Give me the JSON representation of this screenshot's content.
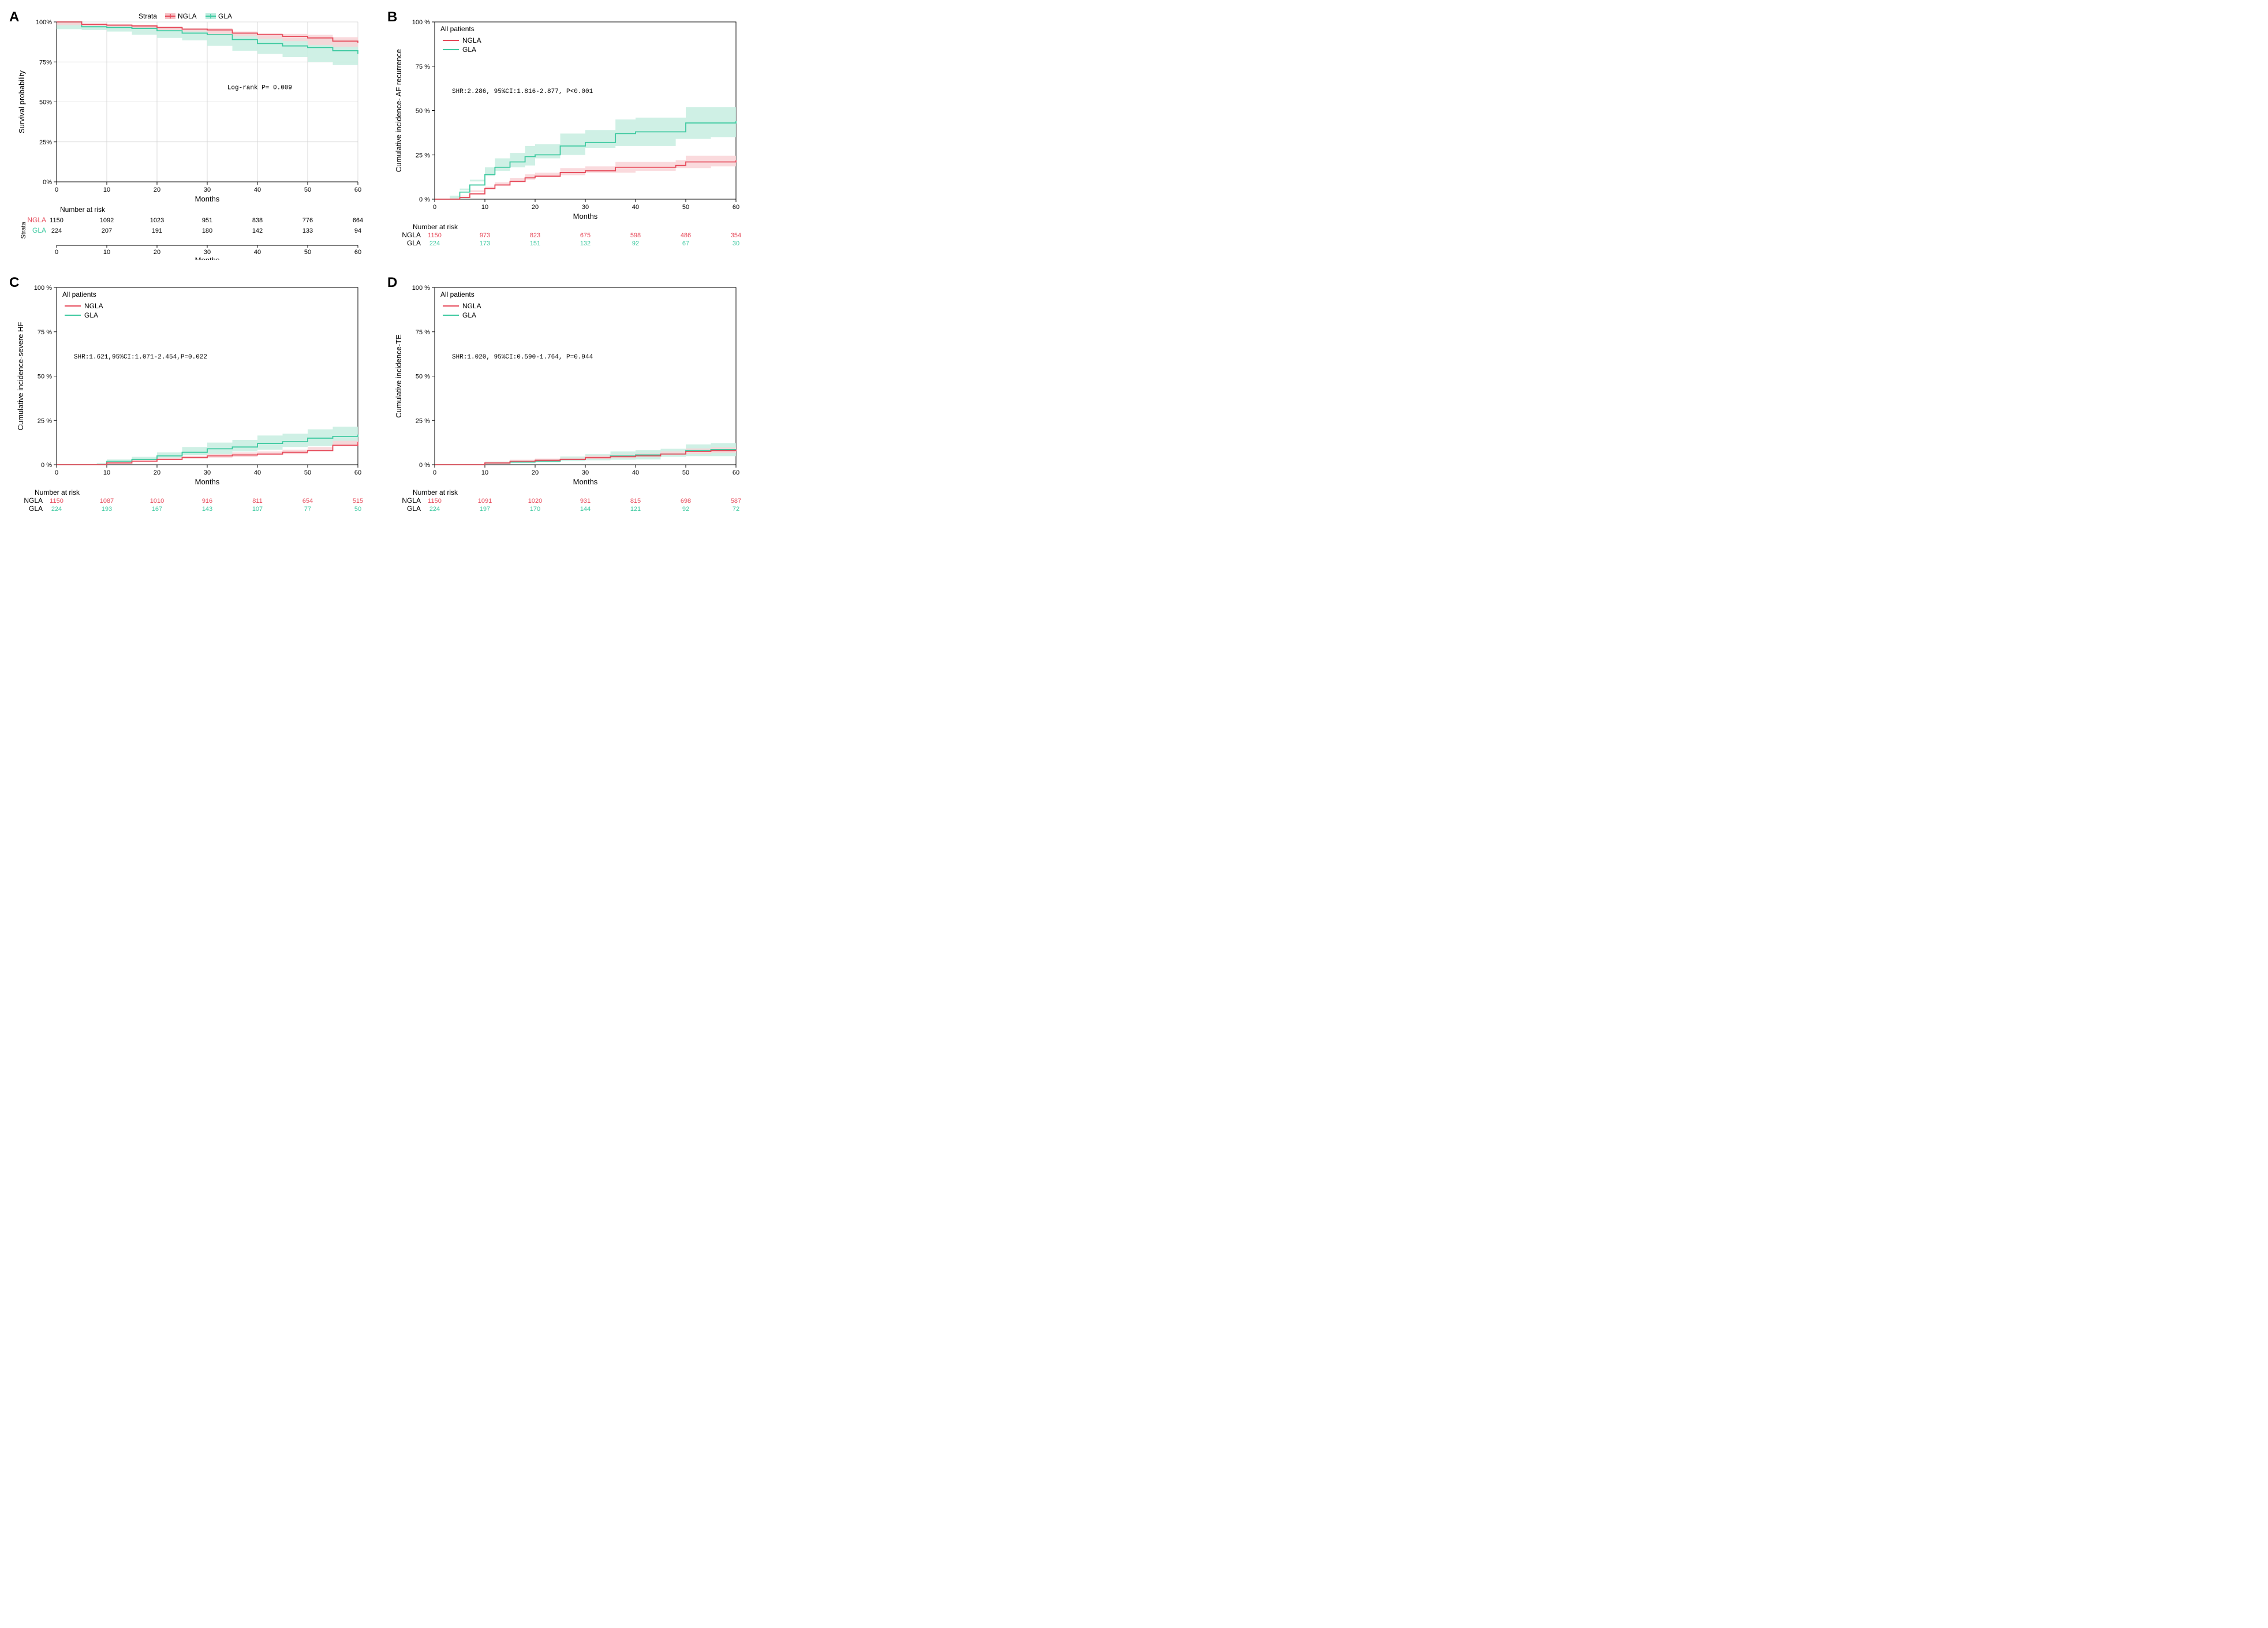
{
  "colors": {
    "ngla": "#e64a5a",
    "gla": "#3dc9a0",
    "ngla_band": "#f9d3d7",
    "gla_band": "#c7ede1",
    "axis": "#000000",
    "grid": "#d0d0d0",
    "bg": "#ffffff",
    "panel_border": "#000000"
  },
  "fontsizes": {
    "panel_letter": 24,
    "axis_title": 13,
    "tick": 11,
    "legend": 12,
    "stat": 11,
    "risk": 11
  },
  "panels": {
    "A": {
      "letter": "A",
      "type": "survival",
      "ylabel": "Survival probability",
      "xlabel": "Months",
      "xlim": [
        0,
        60
      ],
      "xticks": [
        0,
        10,
        20,
        30,
        40,
        50,
        60
      ],
      "ylim": [
        0,
        100
      ],
      "yticks": [
        0,
        25,
        50,
        75,
        100
      ],
      "ytick_labels": [
        "0%",
        "25%",
        "50%",
        "75%",
        "100%"
      ],
      "strata_label": "Strata",
      "legend": [
        {
          "key": "NGLA",
          "color": "#e64a5a"
        },
        {
          "key": "GLA",
          "color": "#3dc9a0"
        }
      ],
      "stat_text": "Log-rank   P= 0.009",
      "series": {
        "NGLA": {
          "x": [
            0,
            5,
            10,
            15,
            20,
            25,
            30,
            35,
            40,
            45,
            50,
            55,
            60
          ],
          "y": [
            100,
            98.5,
            98,
            97.5,
            96.5,
            95.5,
            95,
            93,
            92,
            91,
            90,
            88,
            87
          ],
          "lo": [
            100,
            98,
            97.5,
            97,
            96,
            95,
            94,
            92,
            91,
            89.5,
            88,
            85.5,
            84.5
          ],
          "hi": [
            100,
            99,
            98.5,
            98,
            97,
            96,
            96,
            94,
            93,
            92.5,
            92,
            90.5,
            89.5
          ]
        },
        "GLA": {
          "x": [
            0,
            5,
            10,
            15,
            20,
            25,
            30,
            35,
            40,
            45,
            50,
            55,
            60
          ],
          "y": [
            100,
            97,
            96.5,
            96,
            94.5,
            93,
            92,
            89,
            86.5,
            85,
            84,
            82,
            80
          ],
          "lo": [
            100,
            95.5,
            95,
            94,
            92,
            90,
            88.5,
            85,
            82,
            80,
            78,
            75,
            73
          ],
          "hi": [
            100,
            98.5,
            98,
            98,
            97,
            96,
            95.5,
            93,
            91,
            90,
            90,
            89,
            87
          ]
        }
      },
      "risk": {
        "title": "Number at risk",
        "xticks": [
          0,
          10,
          20,
          30,
          40,
          50,
          60
        ],
        "rows": [
          {
            "label": "NGLA",
            "color": "#e64a5a",
            "vals": [
              1150,
              1092,
              1023,
              951,
              838,
              776,
              664
            ]
          },
          {
            "label": "GLA",
            "color": "#3dc9a0",
            "vals": [
              224,
              207,
              191,
              180,
              142,
              133,
              94
            ]
          }
        ],
        "ylab": "Strata",
        "val_color": "#000000"
      }
    },
    "B": {
      "letter": "B",
      "type": "cuminc",
      "panel_title": "All patients",
      "ylabel": "Cumulative incidence- AF recurrence",
      "xlabel": "Months",
      "xlim": [
        0,
        60
      ],
      "xticks": [
        0,
        10,
        20,
        30,
        40,
        50,
        60
      ],
      "ylim": [
        0,
        100
      ],
      "yticks": [
        0,
        25,
        50,
        75,
        100
      ],
      "ytick_labels": [
        "0 %",
        "25 %",
        "50 %",
        "75 %",
        "100 %"
      ],
      "legend": [
        {
          "key": "NGLA",
          "color": "#e64a5a"
        },
        {
          "key": "GLA",
          "color": "#3dc9a0"
        }
      ],
      "stat_text": "SHR:2.286, 95%CI:1.816-2.877, P<0.001",
      "series": {
        "NGLA": {
          "x": [
            0,
            3,
            5,
            7,
            10,
            12,
            15,
            18,
            20,
            25,
            30,
            36,
            40,
            48,
            50,
            55,
            60
          ],
          "y": [
            0,
            0,
            1,
            3,
            6,
            8,
            10,
            12,
            13,
            15,
            16,
            18,
            18,
            19,
            21,
            21,
            22
          ],
          "lo": [
            0,
            0,
            0.5,
            2,
            5,
            6.5,
            8,
            10,
            11,
            12.5,
            13.5,
            15,
            15,
            16,
            17.5,
            17.5,
            18.5
          ],
          "hi": [
            0,
            0,
            1.5,
            4,
            7,
            9.5,
            12,
            14,
            15,
            17.5,
            18.5,
            21,
            21,
            22,
            24.5,
            24.5,
            25.5
          ]
        },
        "GLA": {
          "x": [
            0,
            3,
            5,
            7,
            10,
            12,
            15,
            18,
            20,
            25,
            30,
            36,
            40,
            48,
            50,
            55,
            60
          ],
          "y": [
            0,
            0,
            4,
            8,
            14,
            18,
            21,
            24,
            25,
            30,
            32,
            37,
            38,
            38,
            43,
            43,
            44
          ],
          "lo": [
            0,
            0,
            2,
            5,
            10,
            13,
            16,
            18,
            19,
            23,
            25,
            29,
            30,
            30,
            34,
            34,
            35
          ],
          "hi": [
            0,
            0,
            6,
            11,
            18,
            23,
            26,
            30,
            31,
            37,
            39,
            45,
            46,
            46,
            52,
            52,
            53
          ]
        }
      },
      "risk": {
        "title": "Number at risk",
        "xticks": [
          0,
          10,
          20,
          30,
          40,
          50,
          60
        ],
        "rows": [
          {
            "label": "NGLA",
            "color": "#e64a5a",
            "vals": [
              1150,
              973,
              823,
              675,
              598,
              486,
              354
            ]
          },
          {
            "label": "GLA",
            "color": "#3dc9a0",
            "vals": [
              224,
              173,
              151,
              132,
              92,
              67,
              30
            ]
          }
        ],
        "colored_vals": true
      }
    },
    "C": {
      "letter": "C",
      "type": "cuminc",
      "panel_title": "All patients",
      "ylabel": "Cumulative incidence-severe HF",
      "xlabel": "Months",
      "xlim": [
        0,
        60
      ],
      "xticks": [
        0,
        10,
        20,
        30,
        40,
        50,
        60
      ],
      "ylim": [
        0,
        100
      ],
      "yticks": [
        0,
        25,
        50,
        75,
        100
      ],
      "ytick_labels": [
        "0 %",
        "25 %",
        "50 %",
        "75 %",
        "100 %"
      ],
      "legend": [
        {
          "key": "NGLA",
          "color": "#e64a5a"
        },
        {
          "key": "GLA",
          "color": "#3dc9a0"
        }
      ],
      "stat_text": "SHR:1.621,95%CI:1.071-2.454,P=0.022",
      "series": {
        "NGLA": {
          "x": [
            0,
            8,
            10,
            15,
            20,
            25,
            30,
            35,
            40,
            45,
            50,
            55,
            60
          ],
          "y": [
            0,
            0,
            1,
            2,
            3,
            4,
            5,
            5.5,
            6,
            7,
            8,
            11,
            13
          ],
          "lo": [
            0,
            0,
            0.5,
            1,
            2,
            3,
            4,
            4,
            4.5,
            5.5,
            6,
            8.5,
            10.5
          ],
          "hi": [
            0,
            0,
            1.5,
            3,
            4,
            5,
            6,
            7,
            7.5,
            8.5,
            10,
            13.5,
            15.5
          ]
        },
        "GLA": {
          "x": [
            0,
            8,
            10,
            15,
            20,
            25,
            30,
            35,
            40,
            45,
            50,
            55,
            60
          ],
          "y": [
            0,
            0,
            2,
            3,
            5,
            7,
            9,
            10,
            12,
            13,
            15,
            16,
            17
          ],
          "lo": [
            0,
            0,
            1,
            1.5,
            3,
            4,
            5.5,
            6,
            7.5,
            8.5,
            10,
            10.5,
            11.5
          ],
          "hi": [
            0,
            0,
            3,
            4.5,
            7,
            10,
            12.5,
            14,
            16.5,
            17.5,
            20,
            21.5,
            22.5
          ]
        }
      },
      "risk": {
        "title": "Number at risk",
        "xticks": [
          0,
          10,
          20,
          30,
          40,
          50,
          60
        ],
        "rows": [
          {
            "label": "NGLA",
            "color": "#e64a5a",
            "vals": [
              1150,
              1087,
              1010,
              916,
              811,
              654,
              515
            ]
          },
          {
            "label": "GLA",
            "color": "#3dc9a0",
            "vals": [
              224,
              193,
              167,
              143,
              107,
              77,
              50
            ]
          }
        ],
        "colored_vals": true
      }
    },
    "D": {
      "letter": "D",
      "type": "cuminc",
      "panel_title": "All patients",
      "ylabel": "Cumulative incidence-TE",
      "xlabel": "Months",
      "xlim": [
        0,
        60
      ],
      "xticks": [
        0,
        10,
        20,
        30,
        40,
        50,
        60
      ],
      "ylim": [
        0,
        100
      ],
      "yticks": [
        0,
        25,
        50,
        75,
        100
      ],
      "ytick_labels": [
        "0 %",
        "25 %",
        "50 %",
        "75 %",
        "100 %"
      ],
      "legend": [
        {
          "key": "NGLA",
          "color": "#e64a5a"
        },
        {
          "key": "GLA",
          "color": "#3dc9a0"
        }
      ],
      "stat_text": "SHR:1.020, 95%CI:0.590-1.764, P=0.944",
      "series": {
        "NGLA": {
          "x": [
            0,
            6,
            10,
            15,
            20,
            25,
            30,
            35,
            40,
            45,
            50,
            55,
            60
          ],
          "y": [
            0,
            0,
            1,
            2,
            2.5,
            3,
            4,
            4.5,
            5,
            6,
            7.5,
            8,
            8.5
          ],
          "lo": [
            0,
            0,
            0.5,
            1.2,
            1.6,
            2,
            2.8,
            3.2,
            3.6,
            4.5,
            5.8,
            6.2,
            6.6
          ],
          "hi": [
            0,
            0,
            1.5,
            2.8,
            3.4,
            4,
            5.2,
            5.8,
            6.4,
            7.5,
            9.2,
            9.8,
            10.4
          ]
        },
        "GLA": {
          "x": [
            0,
            6,
            10,
            15,
            20,
            25,
            30,
            35,
            40,
            45,
            50,
            55,
            60
          ],
          "y": [
            0,
            0,
            1,
            1.5,
            2,
            3,
            4,
            5,
            5.5,
            6,
            8,
            8.5,
            8.5
          ],
          "lo": [
            0,
            0,
            0.3,
            0.5,
            0.8,
            1.3,
            2,
            2.5,
            2.8,
            3,
            4.5,
            4.8,
            4.8
          ],
          "hi": [
            0,
            0,
            1.7,
            2.5,
            3.2,
            4.7,
            6,
            7.5,
            8.2,
            9,
            11.5,
            12.2,
            12.2
          ]
        }
      },
      "risk": {
        "title": "Number at risk",
        "xticks": [
          0,
          10,
          20,
          30,
          40,
          50,
          60
        ],
        "rows": [
          {
            "label": "NGLA",
            "color": "#e64a5a",
            "vals": [
              1150,
              1091,
              1020,
              931,
              815,
              698,
              587
            ]
          },
          {
            "label": "GLA",
            "color": "#3dc9a0",
            "vals": [
              224,
              197,
              170,
              144,
              121,
              92,
              72
            ]
          }
        ],
        "colored_vals": true
      }
    }
  }
}
